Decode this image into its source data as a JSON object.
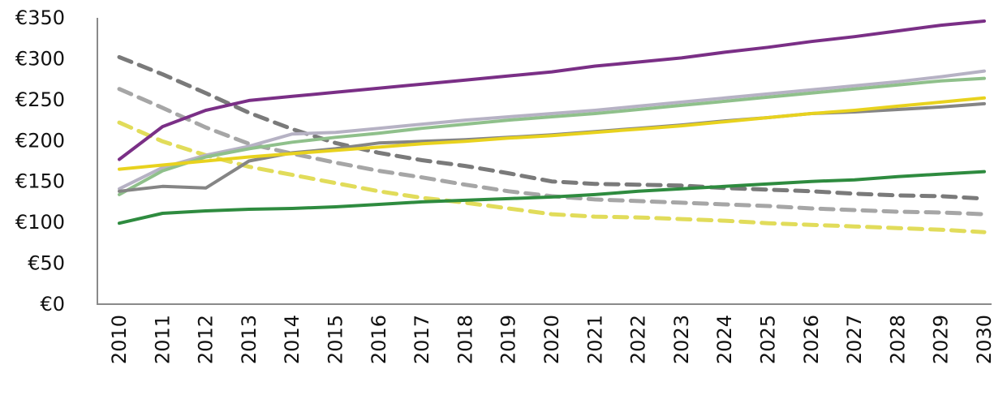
{
  "chart_data": {
    "type": "line",
    "title": "",
    "xlabel": "",
    "ylabel": "",
    "x": [
      "2010",
      "2011",
      "2012",
      "2013",
      "2014",
      "2015",
      "2016",
      "2017",
      "2018",
      "2019",
      "2020",
      "2021",
      "2022",
      "2023",
      "2024",
      "2025",
      "2026",
      "2027",
      "2028",
      "2029",
      "2030"
    ],
    "ylim": [
      0,
      350
    ],
    "yticks": [
      0,
      50,
      100,
      150,
      200,
      250,
      300,
      350
    ],
    "ytick_labels": [
      "€0",
      "€50",
      "€100",
      "€150",
      "€200",
      "€250",
      "€300",
      "€350"
    ],
    "grid": false,
    "legend": "none",
    "series": [
      {
        "color": "#7a2f86",
        "style": "solid",
        "values": [
          177,
          217,
          237,
          249,
          254,
          259,
          264,
          269,
          274,
          279,
          284,
          291,
          296,
          301,
          308,
          314,
          321,
          327,
          334,
          341,
          346
        ]
      },
      {
        "color": "#b6b2c4",
        "style": "solid",
        "values": [
          141,
          167,
          182,
          193,
          208,
          210,
          215,
          220,
          225,
          229,
          233,
          237,
          242,
          247,
          252,
          257,
          262,
          267,
          272,
          278,
          285
        ]
      },
      {
        "color": "#8fc08b",
        "style": "solid",
        "values": [
          134,
          163,
          180,
          190,
          198,
          204,
          209,
          215,
          220,
          225,
          229,
          233,
          238,
          243,
          248,
          253,
          258,
          263,
          268,
          273,
          276
        ]
      },
      {
        "color": "#858585",
        "style": "solid",
        "values": [
          138,
          144,
          142,
          175,
          185,
          190,
          197,
          199,
          201,
          204,
          207,
          211,
          215,
          219,
          224,
          228,
          233,
          235,
          238,
          241,
          245
        ]
      },
      {
        "color": "#e8d21e",
        "style": "solid",
        "values": [
          165,
          170,
          175,
          180,
          184,
          188,
          192,
          196,
          199,
          203,
          206,
          210,
          214,
          218,
          223,
          228,
          233,
          237,
          242,
          247,
          252
        ]
      },
      {
        "color": "#2e8b3f",
        "style": "solid",
        "values": [
          99,
          111,
          114,
          116,
          117,
          119,
          122,
          125,
          127,
          129,
          131,
          134,
          138,
          141,
          144,
          147,
          150,
          152,
          156,
          159,
          162
        ]
      },
      {
        "color": "#7a7a7a",
        "style": "dashed",
        "values": [
          302,
          281,
          258,
          234,
          214,
          197,
          185,
          176,
          169,
          160,
          150,
          147,
          146,
          145,
          142,
          140,
          138,
          135,
          133,
          132,
          129
        ]
      },
      {
        "color": "#a6a6a6",
        "style": "dashed",
        "values": [
          263,
          240,
          216,
          196,
          184,
          173,
          163,
          155,
          146,
          138,
          132,
          128,
          126,
          124,
          122,
          120,
          117,
          115,
          113,
          112,
          110
        ]
      },
      {
        "color": "#e1dc5a",
        "style": "dashed",
        "values": [
          222,
          199,
          182,
          168,
          158,
          148,
          138,
          130,
          124,
          117,
          110,
          107,
          106,
          104,
          102,
          99,
          97,
          95,
          93,
          91,
          88
        ]
      }
    ]
  }
}
